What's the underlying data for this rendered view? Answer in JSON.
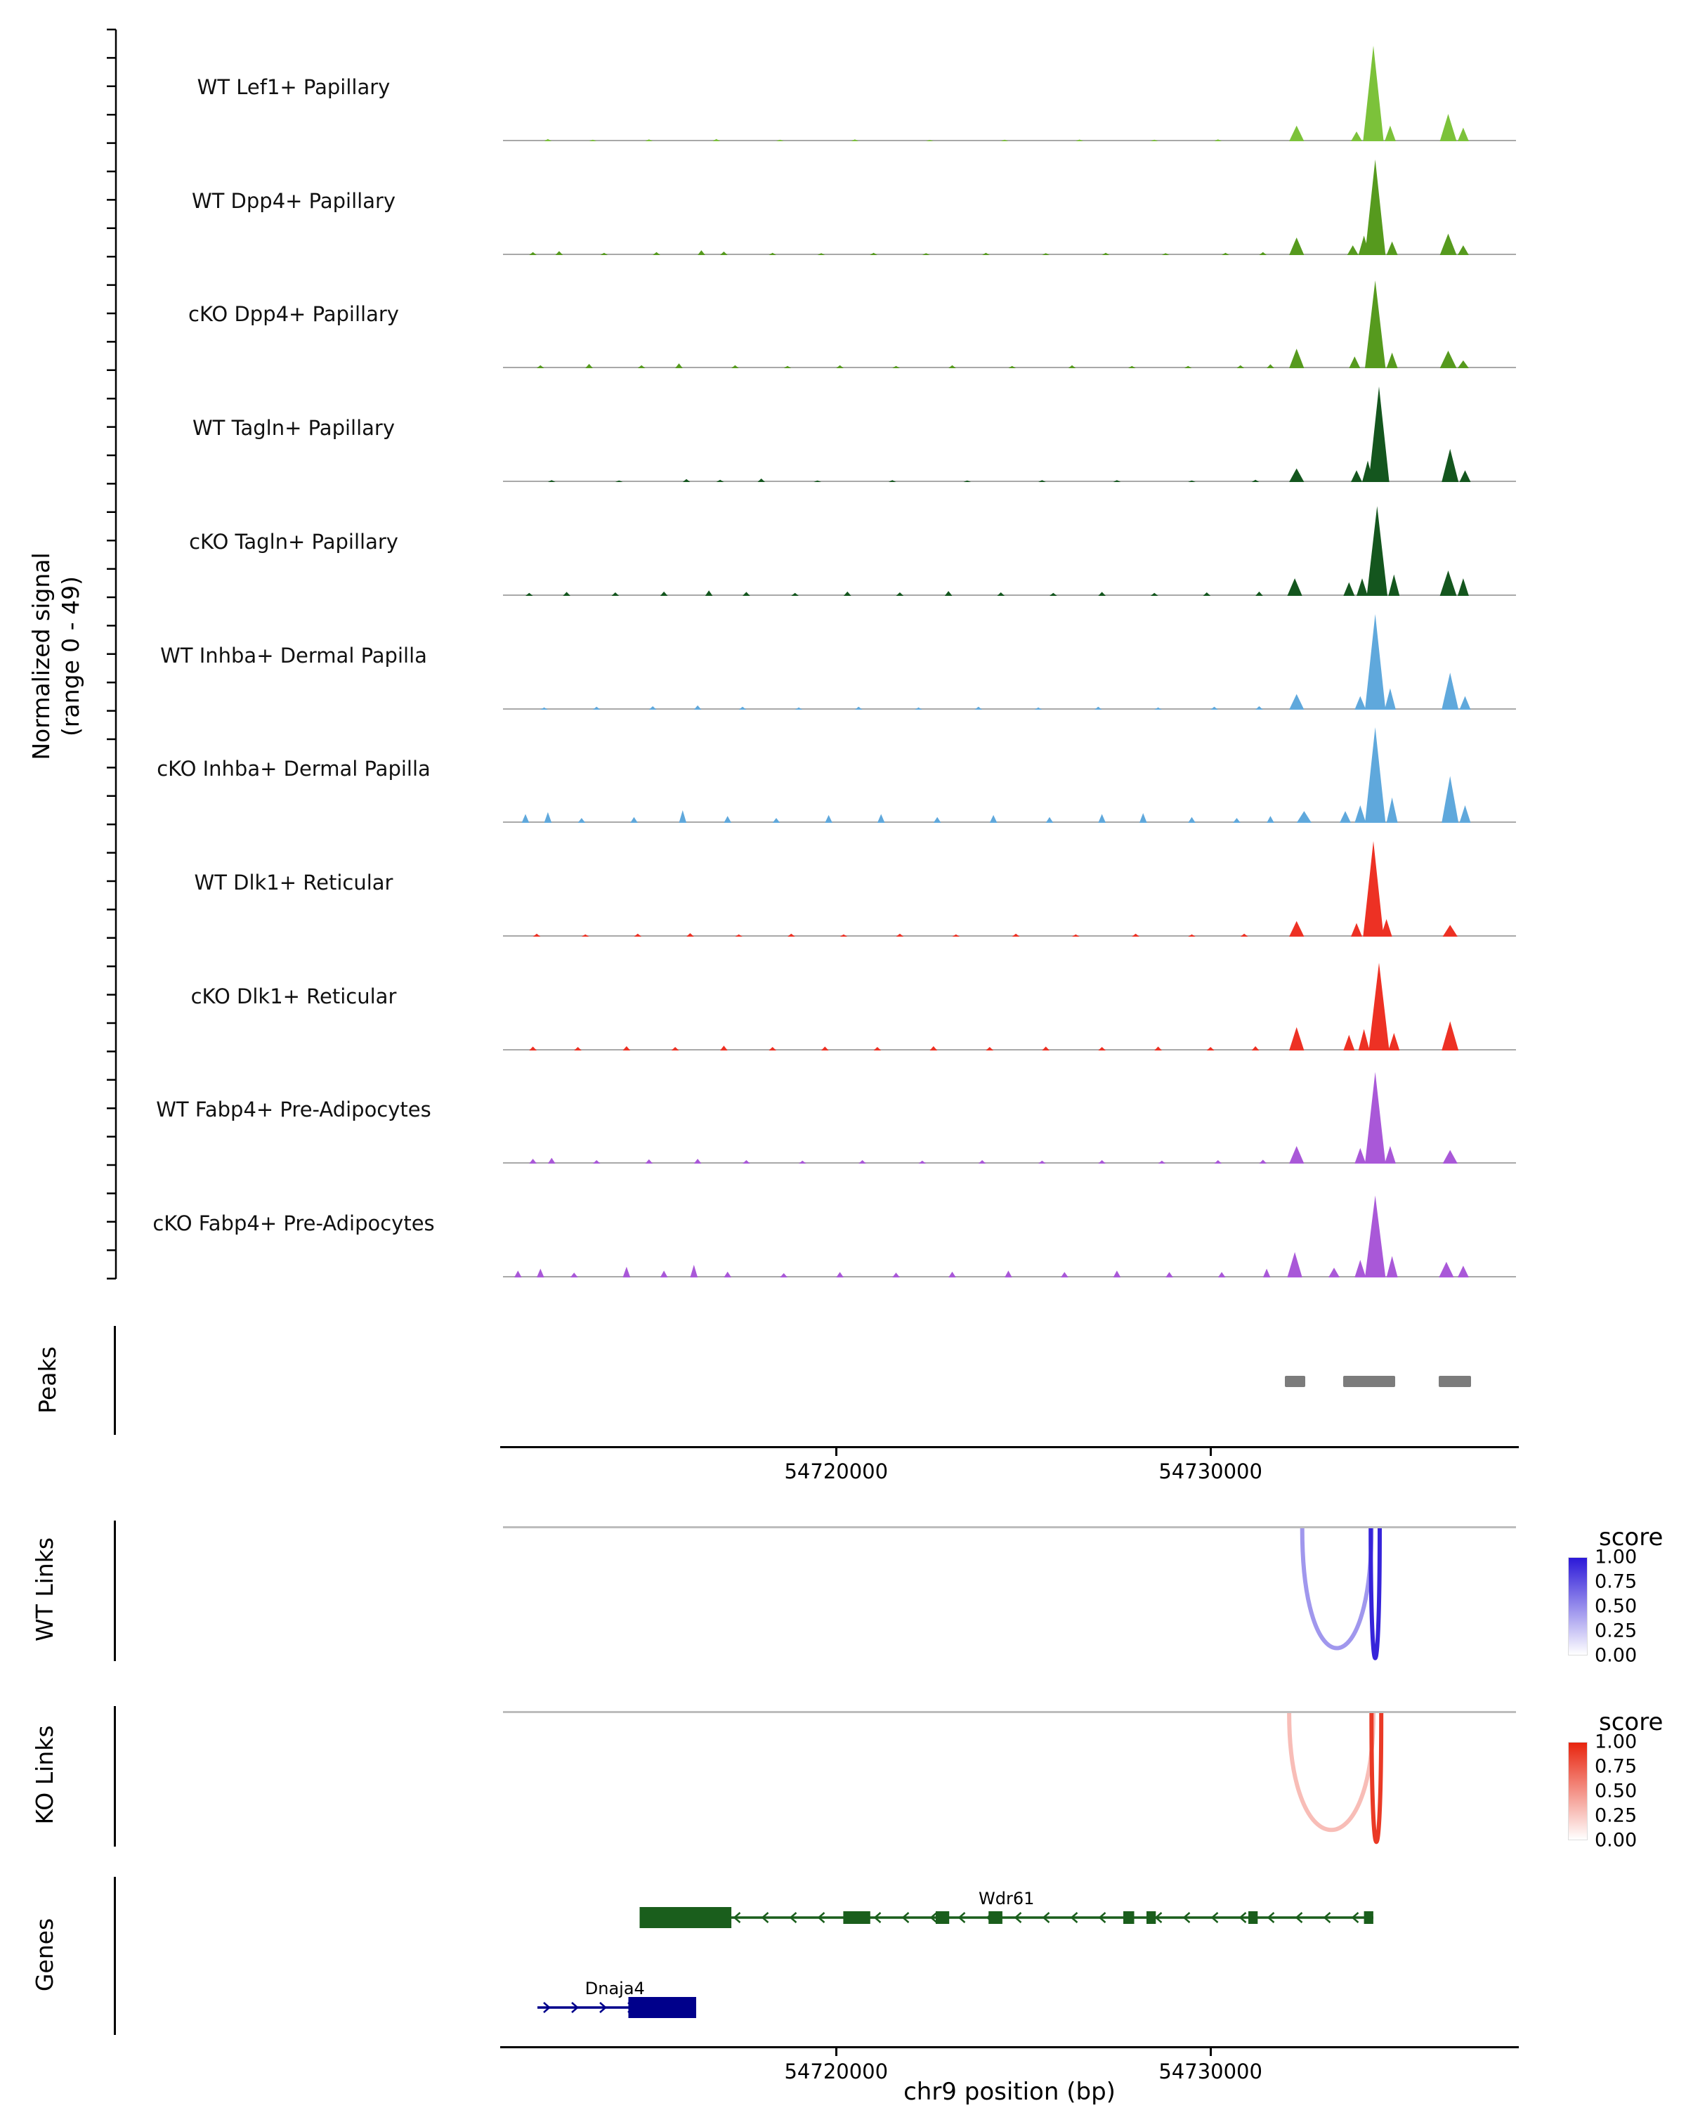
{
  "region": {
    "chrom": "chr9",
    "start": 54711100,
    "end": 54738160
  },
  "y_axis": {
    "label_line1": "Normalized signal",
    "label_line2": "(range 0 - 49)"
  },
  "x_axis": {
    "title": "chr9 position (bp)",
    "ticks": [
      {
        "bp": 54720000,
        "label": "54720000"
      },
      {
        "bp": 54730000,
        "label": "54730000"
      }
    ]
  },
  "chart_data": {
    "type": "area",
    "tracks_ylim": [
      0,
      49
    ],
    "tracks": [
      {
        "name": "WT Lef1+ Papillary",
        "color": "#7CC23A",
        "bumps": [
          [
            54712300,
            1.2
          ],
          [
            54713500,
            0.8
          ],
          [
            54715000,
            1.0
          ],
          [
            54716800,
            1.2
          ],
          [
            54718500,
            0.8
          ],
          [
            54720500,
            1.0
          ],
          [
            54722500,
            0.7
          ],
          [
            54724500,
            0.8
          ],
          [
            54726500,
            0.9
          ],
          [
            54728500,
            0.8
          ],
          [
            54730200,
            1.0
          ],
          [
            54732300,
            8,
            400
          ],
          [
            54733900,
            5,
            300
          ],
          [
            54734350,
            49,
            550
          ],
          [
            54734800,
            8,
            300
          ],
          [
            54736350,
            14,
            450
          ],
          [
            54736750,
            7,
            300
          ]
        ]
      },
      {
        "name": "WT Dpp4+ Papillary",
        "color": "#569A1E",
        "bumps": [
          [
            54711900,
            1.5
          ],
          [
            54712600,
            2
          ],
          [
            54713800,
            1.2
          ],
          [
            54715200,
            1.5
          ],
          [
            54716400,
            2.5
          ],
          [
            54717000,
            1.8
          ],
          [
            54718300,
            1.2
          ],
          [
            54719600,
            1
          ],
          [
            54721000,
            1.2
          ],
          [
            54722400,
            1
          ],
          [
            54724000,
            1.2
          ],
          [
            54725600,
            1
          ],
          [
            54727200,
            1.2
          ],
          [
            54728800,
            1
          ],
          [
            54730400,
            1.2
          ],
          [
            54731400,
            1.5
          ],
          [
            54732300,
            9,
            400
          ],
          [
            54733800,
            5,
            300
          ],
          [
            54734100,
            10,
            300
          ],
          [
            54734400,
            49,
            550
          ],
          [
            54734850,
            7,
            300
          ],
          [
            54736350,
            11,
            450
          ],
          [
            54736750,
            5,
            300
          ]
        ]
      },
      {
        "name": "cKO Dpp4+ Papillary",
        "color": "#569A1E",
        "bumps": [
          [
            54712100,
            1.5
          ],
          [
            54713400,
            2.2
          ],
          [
            54714800,
            1.5
          ],
          [
            54715800,
            2.5
          ],
          [
            54717300,
            1.5
          ],
          [
            54718700,
            1.2
          ],
          [
            54720100,
            1.5
          ],
          [
            54721600,
            1.2
          ],
          [
            54723100,
            1.5
          ],
          [
            54724700,
            1.2
          ],
          [
            54726300,
            1.5
          ],
          [
            54727900,
            1.2
          ],
          [
            54729400,
            1.2
          ],
          [
            54730800,
            1.5
          ],
          [
            54731600,
            2
          ],
          [
            54732300,
            10,
            400
          ],
          [
            54733850,
            6,
            300
          ],
          [
            54734400,
            45,
            550
          ],
          [
            54734850,
            8,
            300
          ],
          [
            54736350,
            9,
            450
          ],
          [
            54736750,
            4,
            300
          ]
        ]
      },
      {
        "name": "WT Tagln+ Papillary",
        "color": "#14561E",
        "bumps": [
          [
            54712400,
            1
          ],
          [
            54714200,
            0.8
          ],
          [
            54716000,
            1.5
          ],
          [
            54716900,
            1.2
          ],
          [
            54718000,
            1.8
          ],
          [
            54719500,
            0.8
          ],
          [
            54721500,
            1
          ],
          [
            54723500,
            0.8
          ],
          [
            54725500,
            1
          ],
          [
            54727500,
            1
          ],
          [
            54729500,
            0.8
          ],
          [
            54731200,
            1.2
          ],
          [
            54732300,
            7,
            400
          ],
          [
            54733900,
            6,
            300
          ],
          [
            54734200,
            11,
            300
          ],
          [
            54734500,
            49,
            550
          ],
          [
            54736400,
            17,
            450
          ],
          [
            54736800,
            6,
            300
          ]
        ]
      },
      {
        "name": "cKO Tagln+ Papillary",
        "color": "#14561E",
        "bumps": [
          [
            54711800,
            1.5
          ],
          [
            54712800,
            2
          ],
          [
            54714100,
            1.8
          ],
          [
            54715400,
            2.2
          ],
          [
            54716600,
            2.8
          ],
          [
            54717600,
            2
          ],
          [
            54718900,
            1.5
          ],
          [
            54720300,
            2.2
          ],
          [
            54721700,
            1.8
          ],
          [
            54723000,
            2.5
          ],
          [
            54724400,
            1.8
          ],
          [
            54725800,
            1.5
          ],
          [
            54727100,
            2
          ],
          [
            54728500,
            1.5
          ],
          [
            54729900,
            1.8
          ],
          [
            54731300,
            2.2
          ],
          [
            54732250,
            9,
            400
          ],
          [
            54733700,
            7,
            300
          ],
          [
            54734050,
            9,
            300
          ],
          [
            54734450,
            46,
            550
          ],
          [
            54734900,
            11,
            300
          ],
          [
            54736350,
            13,
            450
          ],
          [
            54736750,
            9,
            300
          ]
        ]
      },
      {
        "name": "WT Inhba+ Dermal Papilla",
        "color": "#5FA8DC",
        "bumps": [
          [
            54712200,
            1.2
          ],
          [
            54713600,
            1.5
          ],
          [
            54715100,
            1.8
          ],
          [
            54716300,
            2.2
          ],
          [
            54717500,
            1.5
          ],
          [
            54719000,
            1.2
          ],
          [
            54720600,
            1.5
          ],
          [
            54722200,
            1.2
          ],
          [
            54723800,
            1.5
          ],
          [
            54725400,
            1.2
          ],
          [
            54727000,
            1.5
          ],
          [
            54728600,
            1.2
          ],
          [
            54730100,
            1.5
          ],
          [
            54731300,
            1.8
          ],
          [
            54732300,
            8,
            400
          ],
          [
            54734000,
            7,
            300
          ],
          [
            54734400,
            49,
            550
          ],
          [
            54734800,
            11,
            300
          ],
          [
            54736400,
            19,
            450
          ],
          [
            54736800,
            7,
            300
          ]
        ]
      },
      {
        "name": "cKO Inhba+ Dermal Papilla",
        "color": "#5FA8DC",
        "bumps": [
          [
            54711700,
            4.5
          ],
          [
            54712300,
            5.5
          ],
          [
            54713200,
            2.5
          ],
          [
            54714600,
            3
          ],
          [
            54715900,
            6.5
          ],
          [
            54717100,
            3.5
          ],
          [
            54718400,
            2.5
          ],
          [
            54719800,
            4
          ],
          [
            54721200,
            4.5
          ],
          [
            54722700,
            3
          ],
          [
            54724200,
            4
          ],
          [
            54725700,
            3
          ],
          [
            54727100,
            4.5
          ],
          [
            54728200,
            5
          ],
          [
            54729500,
            3
          ],
          [
            54730700,
            2.5
          ],
          [
            54731600,
            3.5
          ],
          [
            54732500,
            6,
            400
          ],
          [
            54733600,
            6,
            300
          ],
          [
            54734000,
            9,
            300
          ],
          [
            54734400,
            49,
            550
          ],
          [
            54734850,
            13,
            300
          ],
          [
            54736400,
            24,
            450
          ],
          [
            54736800,
            9,
            300
          ]
        ]
      },
      {
        "name": "WT Dlk1+ Reticular",
        "color": "#ED3124",
        "bumps": [
          [
            54712000,
            1.5
          ],
          [
            54713300,
            1.2
          ],
          [
            54714700,
            1.5
          ],
          [
            54716100,
            1.8
          ],
          [
            54717400,
            1.2
          ],
          [
            54718800,
            1.5
          ],
          [
            54720200,
            1.2
          ],
          [
            54721700,
            1.5
          ],
          [
            54723200,
            1.2
          ],
          [
            54724800,
            1.5
          ],
          [
            54726400,
            1.2
          ],
          [
            54728000,
            1.5
          ],
          [
            54729500,
            1.2
          ],
          [
            54730900,
            1.5
          ],
          [
            54732300,
            8,
            400
          ],
          [
            54733900,
            7,
            300
          ],
          [
            54734350,
            49,
            550
          ],
          [
            54734700,
            9,
            300
          ],
          [
            54736400,
            6,
            400
          ]
        ]
      },
      {
        "name": "cKO Dlk1+ Reticular",
        "color": "#ED3124",
        "bumps": [
          [
            54711900,
            2
          ],
          [
            54713100,
            1.8
          ],
          [
            54714400,
            2.2
          ],
          [
            54715700,
            1.8
          ],
          [
            54717000,
            2.5
          ],
          [
            54718300,
            1.8
          ],
          [
            54719700,
            2
          ],
          [
            54721100,
            1.8
          ],
          [
            54722600,
            2.2
          ],
          [
            54724100,
            1.8
          ],
          [
            54725600,
            2
          ],
          [
            54727100,
            1.8
          ],
          [
            54728600,
            2
          ],
          [
            54730000,
            1.8
          ],
          [
            54731200,
            2.2
          ],
          [
            54732300,
            12,
            400
          ],
          [
            54733700,
            8,
            300
          ],
          [
            54734100,
            11,
            300
          ],
          [
            54734500,
            45,
            550
          ],
          [
            54734900,
            9,
            300
          ],
          [
            54736400,
            15,
            450
          ]
        ]
      },
      {
        "name": "WT Fabp4+ Pre-Adipocytes",
        "color": "#A958D8",
        "bumps": [
          [
            54711900,
            2.5
          ],
          [
            54712400,
            3
          ],
          [
            54713600,
            1.8
          ],
          [
            54715000,
            2.2
          ],
          [
            54716300,
            2.5
          ],
          [
            54717600,
            1.8
          ],
          [
            54719100,
            1.5
          ],
          [
            54720700,
            1.8
          ],
          [
            54722300,
            1.5
          ],
          [
            54723900,
            1.8
          ],
          [
            54725500,
            1.5
          ],
          [
            54727100,
            1.8
          ],
          [
            54728700,
            1.5
          ],
          [
            54730200,
            1.8
          ],
          [
            54731400,
            2
          ],
          [
            54732300,
            9,
            400
          ],
          [
            54734000,
            8,
            300
          ],
          [
            54734400,
            47,
            550
          ],
          [
            54734800,
            9,
            300
          ],
          [
            54736400,
            7,
            400
          ]
        ]
      },
      {
        "name": "cKO Fabp4+ Pre-Adipocytes",
        "color": "#A958D8",
        "bumps": [
          [
            54711500,
            3.5
          ],
          [
            54712100,
            4.5
          ],
          [
            54713000,
            2.5
          ],
          [
            54714400,
            5.5
          ],
          [
            54715400,
            3.5
          ],
          [
            54716200,
            6.5
          ],
          [
            54717100,
            3
          ],
          [
            54718600,
            2.2
          ],
          [
            54720100,
            2.8
          ],
          [
            54721600,
            2.5
          ],
          [
            54723100,
            3
          ],
          [
            54724600,
            3.5
          ],
          [
            54726100,
            2.8
          ],
          [
            54727500,
            3.5
          ],
          [
            54728900,
            2.8
          ],
          [
            54730300,
            2.8
          ],
          [
            54731500,
            4.5
          ],
          [
            54732250,
            13,
            400
          ],
          [
            54733300,
            5,
            300
          ],
          [
            54734000,
            9,
            300
          ],
          [
            54734400,
            42,
            550
          ],
          [
            54734850,
            11,
            300
          ],
          [
            54736300,
            8,
            400
          ],
          [
            54736750,
            6,
            300
          ]
        ]
      }
    ],
    "peaks": {
      "label": "Peaks",
      "color": "#7c7c7c",
      "intervals": [
        [
          54731990,
          54732530
        ],
        [
          54733550,
          54734930
        ],
        [
          54736100,
          54736960
        ]
      ]
    },
    "wt_links": {
      "label": "WT Links",
      "legend_title": "score",
      "legend_ticks": [
        "1.00",
        "0.75",
        "0.50",
        "0.25",
        "0.00"
      ],
      "high_color": "#2B18D8",
      "arcs": [
        {
          "from": 54732450,
          "to": 54734300,
          "score": 0.45
        },
        {
          "from": 54734280,
          "to": 54734520,
          "score": 0.95
        }
      ]
    },
    "ko_links": {
      "label": "KO Links",
      "legend_title": "score",
      "legend_ticks": [
        "1.00",
        "0.75",
        "0.50",
        "0.25",
        "0.00"
      ],
      "high_color": "#E8240E",
      "arcs": [
        {
          "from": 54732100,
          "to": 54734350,
          "score": 0.3
        },
        {
          "from": 54734300,
          "to": 54734560,
          "score": 0.9
        }
      ]
    },
    "genes": {
      "label": "Genes",
      "items": [
        {
          "name": "Wdr61",
          "strand": "-",
          "color": "#1A5E1C",
          "start": 54714750,
          "end": 54734350,
          "label_bp": 54724550,
          "exons": [
            [
              54714750,
              54717200,
              1
            ],
            [
              54720190,
              54720910
            ],
            [
              54722660,
              54723020
            ],
            [
              54724070,
              54724440
            ],
            [
              54727670,
              54727960
            ],
            [
              54728290,
              54728540
            ],
            [
              54731010,
              54731260
            ],
            [
              54734100,
              54734350
            ]
          ]
        },
        {
          "name": "Dnaja4",
          "strand": "+",
          "color": "#00008B",
          "start": 54712020,
          "end": 54716260,
          "label_bp": 54714090,
          "exons": [
            [
              54714450,
              54716260,
              1
            ]
          ]
        }
      ]
    }
  }
}
